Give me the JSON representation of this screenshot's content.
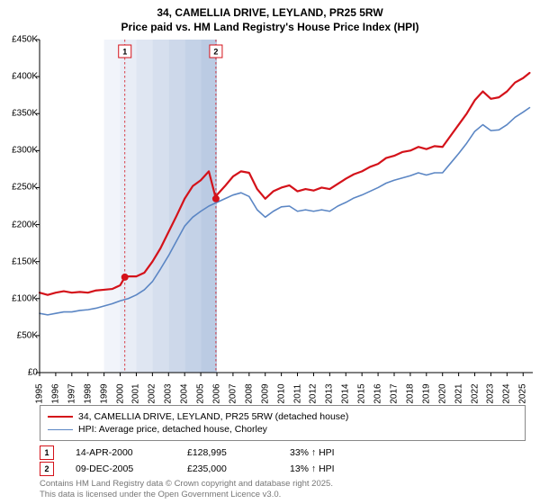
{
  "title_line1": "34, CAMELLIA DRIVE, LEYLAND, PR25 5RW",
  "title_line2": "Price paid vs. HM Land Registry's House Price Index (HPI)",
  "chart": {
    "type": "line",
    "x_start_year": 1995,
    "x_end_year": 2025.6,
    "xticks_years": [
      1995,
      1996,
      1997,
      1998,
      1999,
      2000,
      2001,
      2002,
      2003,
      2004,
      2005,
      2006,
      2007,
      2008,
      2009,
      2010,
      2011,
      2012,
      2013,
      2014,
      2015,
      2016,
      2017,
      2018,
      2019,
      2020,
      2021,
      2022,
      2023,
      2024,
      2025
    ],
    "ylim": [
      0,
      450000
    ],
    "ytick_step": 50000,
    "yticks": [
      0,
      50000,
      100000,
      150000,
      200000,
      250000,
      300000,
      350000,
      400000,
      450000
    ],
    "ytick_labels": [
      "£0",
      "£50K",
      "£100K",
      "£150K",
      "£200K",
      "£250K",
      "£300K",
      "£350K",
      "£400K",
      "£450K"
    ],
    "background_color": "#ffffff",
    "shade_years": [
      1999,
      2000,
      2001,
      2002,
      2003,
      2004,
      2005
    ],
    "shade_colors": [
      "#f1f4fa",
      "#e8edf6",
      "#dfe6f2",
      "#d6dfee",
      "#cdd8ea",
      "#c4d2e7",
      "#bbcbe3"
    ],
    "axis_color": "#000000",
    "series": [
      {
        "name": "subject",
        "label": "34, CAMELLIA DRIVE, LEYLAND, PR25 5RW (detached house)",
        "color": "#d4121a",
        "line_width": 2.2,
        "data": [
          [
            1995,
            108000
          ],
          [
            1995.5,
            105000
          ],
          [
            1996,
            108000
          ],
          [
            1996.5,
            110000
          ],
          [
            1997,
            108000
          ],
          [
            1997.5,
            109000
          ],
          [
            1998,
            108000
          ],
          [
            1998.5,
            111000
          ],
          [
            1999,
            112000
          ],
          [
            1999.5,
            113000
          ],
          [
            2000,
            118000
          ],
          [
            2000.29,
            128995
          ],
          [
            2000.5,
            130000
          ],
          [
            2001,
            130000
          ],
          [
            2001.5,
            135000
          ],
          [
            2002,
            150000
          ],
          [
            2002.5,
            168000
          ],
          [
            2003,
            190000
          ],
          [
            2003.5,
            212000
          ],
          [
            2004,
            235000
          ],
          [
            2004.5,
            252000
          ],
          [
            2005,
            260000
          ],
          [
            2005.5,
            272000
          ],
          [
            2005.94,
            235000
          ],
          [
            2006,
            240000
          ],
          [
            2006.5,
            252000
          ],
          [
            2007,
            265000
          ],
          [
            2007.5,
            272000
          ],
          [
            2008,
            270000
          ],
          [
            2008.5,
            248000
          ],
          [
            2009,
            235000
          ],
          [
            2009.5,
            245000
          ],
          [
            2010,
            250000
          ],
          [
            2010.5,
            253000
          ],
          [
            2011,
            245000
          ],
          [
            2011.5,
            248000
          ],
          [
            2012,
            246000
          ],
          [
            2012.5,
            250000
          ],
          [
            2013,
            248000
          ],
          [
            2013.5,
            255000
          ],
          [
            2014,
            262000
          ],
          [
            2014.5,
            268000
          ],
          [
            2015,
            272000
          ],
          [
            2015.5,
            278000
          ],
          [
            2016,
            282000
          ],
          [
            2016.5,
            290000
          ],
          [
            2017,
            293000
          ],
          [
            2017.5,
            298000
          ],
          [
            2018,
            300000
          ],
          [
            2018.5,
            305000
          ],
          [
            2019,
            302000
          ],
          [
            2019.5,
            306000
          ],
          [
            2020,
            305000
          ],
          [
            2020.5,
            320000
          ],
          [
            2021,
            335000
          ],
          [
            2021.5,
            350000
          ],
          [
            2022,
            368000
          ],
          [
            2022.5,
            380000
          ],
          [
            2023,
            370000
          ],
          [
            2023.5,
            372000
          ],
          [
            2024,
            380000
          ],
          [
            2024.5,
            392000
          ],
          [
            2025,
            398000
          ],
          [
            2025.4,
            405000
          ]
        ]
      },
      {
        "name": "hpi",
        "label": "HPI: Average price, detached house, Chorley",
        "color": "#5b86c4",
        "line_width": 1.6,
        "data": [
          [
            1995,
            80000
          ],
          [
            1995.5,
            78000
          ],
          [
            1996,
            80000
          ],
          [
            1996.5,
            82000
          ],
          [
            1997,
            82000
          ],
          [
            1997.5,
            84000
          ],
          [
            1998,
            85000
          ],
          [
            1998.5,
            87000
          ],
          [
            1999,
            90000
          ],
          [
            1999.5,
            93000
          ],
          [
            2000,
            97000
          ],
          [
            2000.5,
            100000
          ],
          [
            2001,
            105000
          ],
          [
            2001.5,
            112000
          ],
          [
            2002,
            123000
          ],
          [
            2002.5,
            140000
          ],
          [
            2003,
            158000
          ],
          [
            2003.5,
            178000
          ],
          [
            2004,
            198000
          ],
          [
            2004.5,
            210000
          ],
          [
            2005,
            218000
          ],
          [
            2005.5,
            225000
          ],
          [
            2006,
            230000
          ],
          [
            2006.5,
            235000
          ],
          [
            2007,
            240000
          ],
          [
            2007.5,
            243000
          ],
          [
            2008,
            238000
          ],
          [
            2008.5,
            220000
          ],
          [
            2009,
            210000
          ],
          [
            2009.5,
            218000
          ],
          [
            2010,
            224000
          ],
          [
            2010.5,
            225000
          ],
          [
            2011,
            218000
          ],
          [
            2011.5,
            220000
          ],
          [
            2012,
            218000
          ],
          [
            2012.5,
            220000
          ],
          [
            2013,
            218000
          ],
          [
            2013.5,
            225000
          ],
          [
            2014,
            230000
          ],
          [
            2014.5,
            236000
          ],
          [
            2015,
            240000
          ],
          [
            2015.5,
            245000
          ],
          [
            2016,
            250000
          ],
          [
            2016.5,
            256000
          ],
          [
            2017,
            260000
          ],
          [
            2017.5,
            263000
          ],
          [
            2018,
            266000
          ],
          [
            2018.5,
            270000
          ],
          [
            2019,
            267000
          ],
          [
            2019.5,
            270000
          ],
          [
            2020,
            270000
          ],
          [
            2020.5,
            283000
          ],
          [
            2021,
            296000
          ],
          [
            2021.5,
            310000
          ],
          [
            2022,
            326000
          ],
          [
            2022.5,
            335000
          ],
          [
            2023,
            327000
          ],
          [
            2023.5,
            328000
          ],
          [
            2024,
            335000
          ],
          [
            2024.5,
            345000
          ],
          [
            2025,
            352000
          ],
          [
            2025.4,
            358000
          ]
        ]
      }
    ],
    "sale_markers": [
      {
        "num": "1",
        "year": 2000.29,
        "price": 128995,
        "line_color": "#d4121a",
        "border_color": "#d4121a"
      },
      {
        "num": "2",
        "year": 2005.94,
        "price": 235000,
        "line_color": "#d4121a",
        "border_color": "#d4121a"
      }
    ],
    "marker_dot_color": "#d4121a",
    "marker_dot_radius": 4
  },
  "legend": {
    "border_color": "#888888"
  },
  "sales_table": [
    {
      "num": "1",
      "border_color": "#d4121a",
      "date": "14-APR-2000",
      "price": "£128,995",
      "pct": "33% ↑ HPI"
    },
    {
      "num": "2",
      "border_color": "#d4121a",
      "date": "09-DEC-2005",
      "price": "£235,000",
      "pct": "13% ↑ HPI"
    }
  ],
  "footer_line1": "Contains HM Land Registry data © Crown copyright and database right 2025.",
  "footer_line2": "This data is licensed under the Open Government Licence v3.0."
}
